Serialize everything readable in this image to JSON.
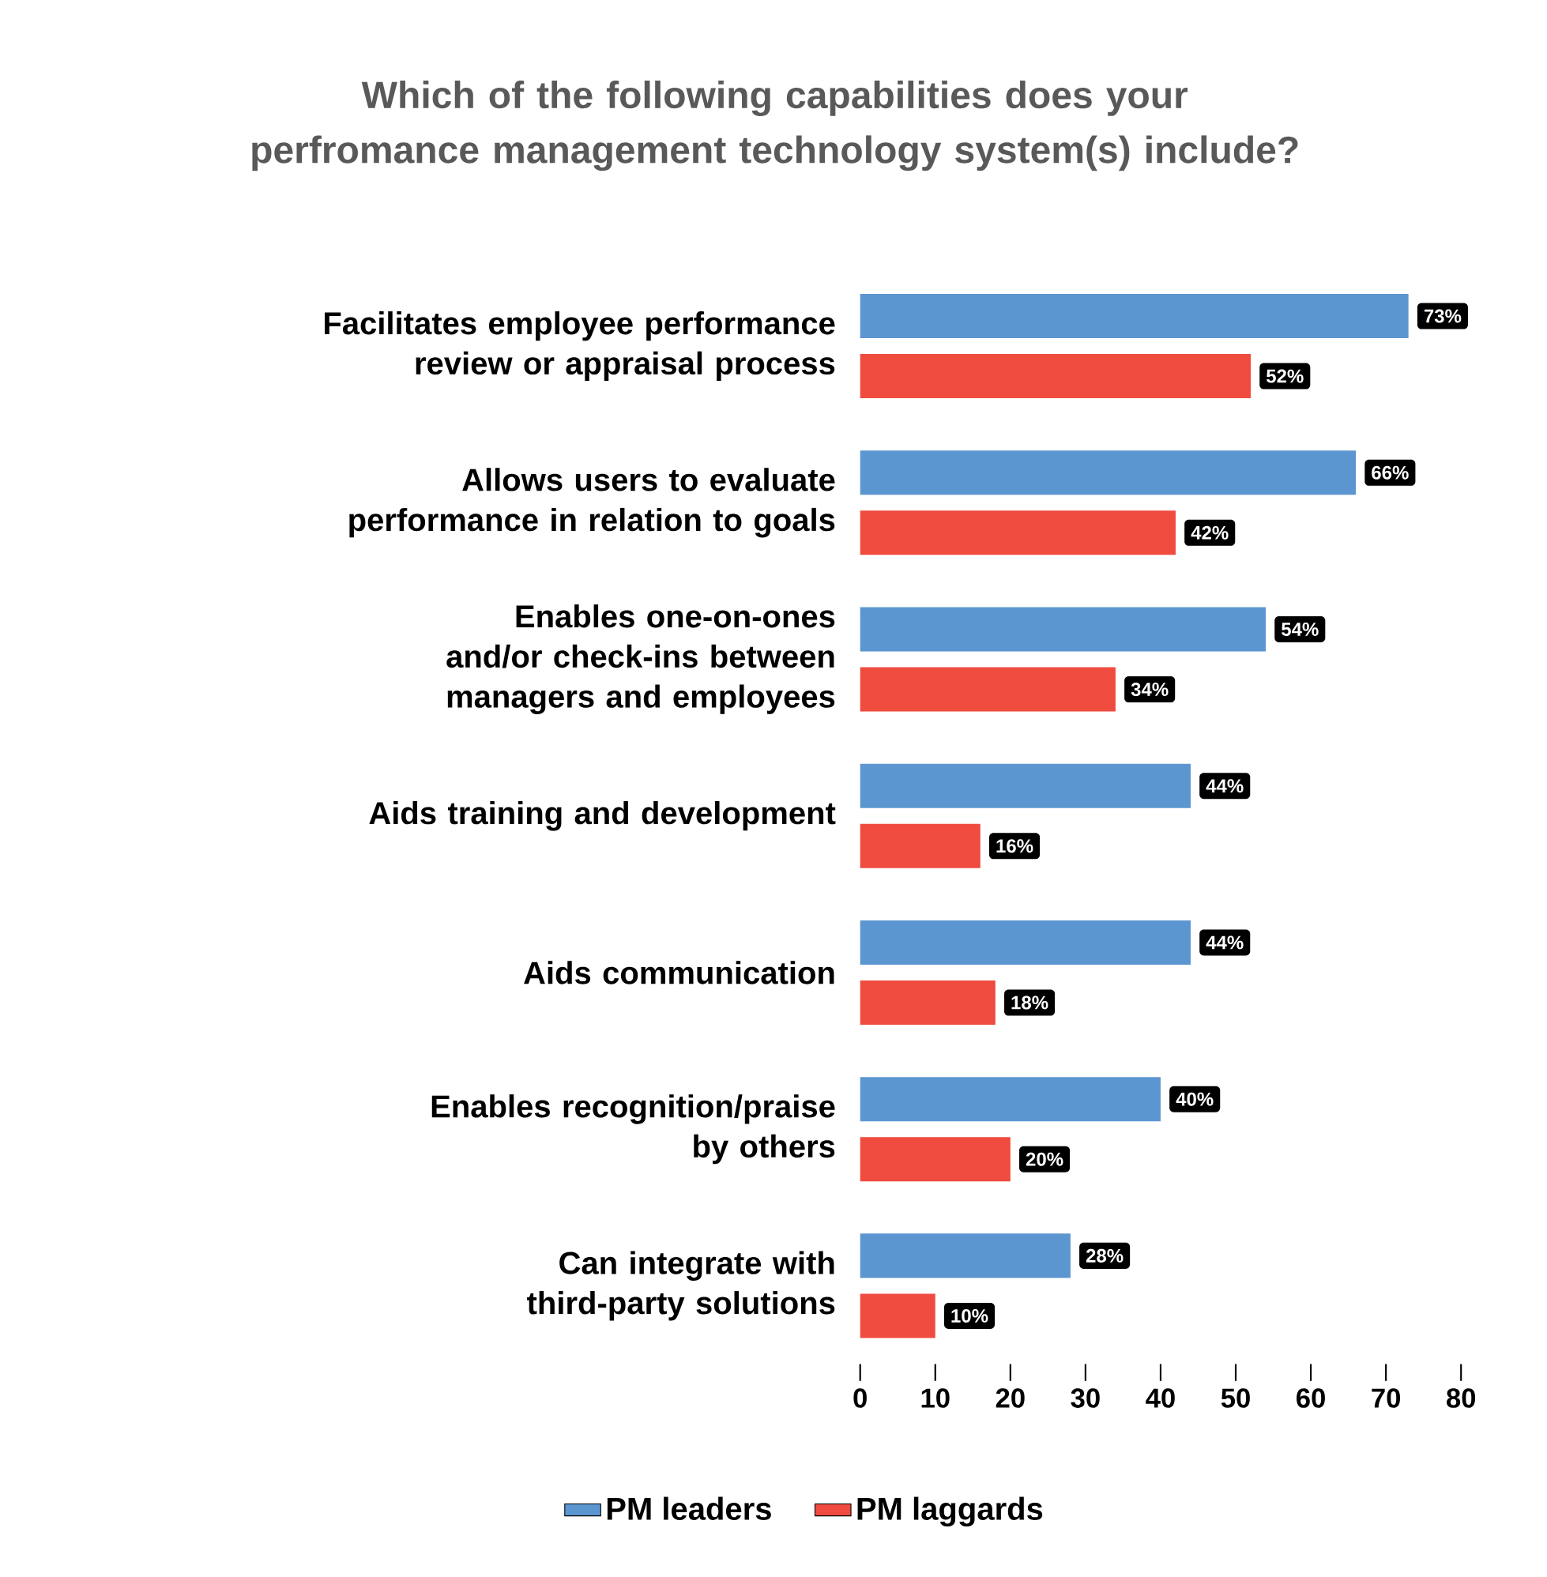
{
  "chart_data": {
    "type": "bar",
    "orientation": "horizontal",
    "title": "Which of the following capabilities does your perfromance management technology system(s) include?",
    "categories": [
      "Facilitates employee performance review or appraisal process",
      "Allows users to evaluate performance in relation to goals",
      "Enables one-on-ones and/or check-ins between managers and employees",
      "Aids training and development",
      "Aids communication",
      "Enables recognition/praise by others",
      "Can integrate with third-party solutions"
    ],
    "series": [
      {
        "name": "PM leaders",
        "color": "#5b96d0",
        "values": [
          73,
          66,
          54,
          44,
          44,
          40,
          28
        ],
        "value_labels": [
          "73%",
          "66%",
          "54%",
          "44%",
          "44%",
          "40%",
          "28%"
        ]
      },
      {
        "name": "PM laggards",
        "color": "#ef4b3f",
        "values": [
          52,
          42,
          34,
          16,
          18,
          20,
          10
        ],
        "value_labels": [
          "52%",
          "42%",
          "34%",
          "16%",
          "18%",
          "20%",
          "10%"
        ]
      }
    ],
    "xlim": [
      0,
      80
    ],
    "xticks": [
      0,
      10,
      20,
      30,
      40,
      50,
      60,
      70,
      80
    ],
    "grid": false,
    "legend": "bottom"
  }
}
